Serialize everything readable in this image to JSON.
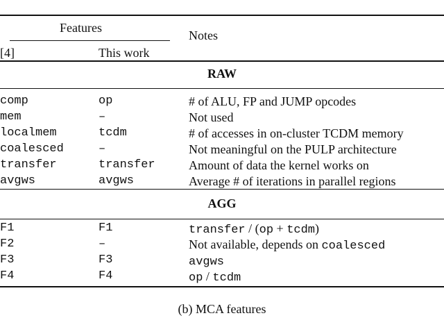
{
  "header": {
    "features": "Features",
    "notes": "Notes",
    "ref": "[4]",
    "this_work": "This work"
  },
  "sections": [
    {
      "title": "RAW",
      "rows": [
        {
          "ref": "comp",
          "this": "op",
          "note": "# of ALU, FP and JUMP opcodes"
        },
        {
          "ref": "mem",
          "this": "–",
          "note": "Not used"
        },
        {
          "ref": "localmem",
          "this": "tcdm",
          "note": "# of accesses in on-cluster TCDM memory"
        },
        {
          "ref": "coalesced",
          "this": "–",
          "note": "Not meaningful on the PULP architecture"
        },
        {
          "ref": "transfer",
          "this": "transfer",
          "note": "Amount of data the kernel works on"
        },
        {
          "ref": "avgws",
          "this": "avgws",
          "note": "Average # of iterations in parallel regions"
        }
      ]
    },
    {
      "title": "AGG",
      "rows": [
        {
          "ref": "F1",
          "this": "F1",
          "note_parts": [
            {
              "t": "transfer",
              "m": true
            },
            {
              "t": " / (",
              "m": false
            },
            {
              "t": "op",
              "m": true
            },
            {
              "t": " + ",
              "m": false
            },
            {
              "t": "tcdm",
              "m": true
            },
            {
              "t": ")",
              "m": false
            }
          ]
        },
        {
          "ref": "F2",
          "this": "–",
          "note_parts": [
            {
              "t": "Not available, depends on ",
              "m": false
            },
            {
              "t": "coalesced",
              "m": true
            }
          ]
        },
        {
          "ref": "F3",
          "this": "F3",
          "note_parts": [
            {
              "t": "avgws",
              "m": true
            }
          ]
        },
        {
          "ref": "F4",
          "this": "F4",
          "note_parts": [
            {
              "t": "op",
              "m": true
            },
            {
              "t": " / ",
              "m": false
            },
            {
              "t": "tcdm",
              "m": true
            }
          ]
        }
      ]
    }
  ],
  "caption": "(b) MCA features"
}
